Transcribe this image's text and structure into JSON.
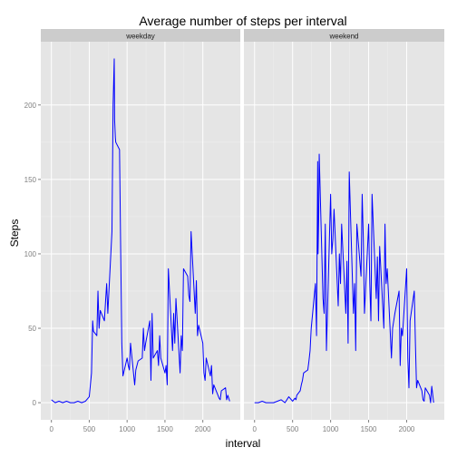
{
  "colors": {
    "panel_bg": "#e5e5e5",
    "strip_bg": "#cccccc",
    "grid_major": "#ffffff",
    "grid_minor": "#f0f0f0",
    "line": "#0000ff",
    "tick": "#7f7f7f"
  },
  "chart_data": {
    "type": "line",
    "title": "Average number of steps per interval",
    "xlabel": "interval",
    "ylabel": "Steps",
    "xlim": [
      -140,
      2495
    ],
    "ylim": [
      -11.5,
      242.5
    ],
    "x_ticks": [
      0,
      500,
      1000,
      1500,
      2000
    ],
    "x_tick_labels": [
      "0",
      "500",
      "1000",
      "1500",
      "2000"
    ],
    "y_ticks": [
      0,
      50,
      100,
      150,
      200
    ],
    "y_tick_labels": [
      "0",
      "50",
      "100",
      "150",
      "200"
    ],
    "grid": true,
    "legend": "none",
    "facets": [
      {
        "name": "weekday",
        "x": [
          0,
          50,
          100,
          150,
          200,
          250,
          300,
          350,
          400,
          450,
          500,
          530,
          545,
          555,
          600,
          615,
          630,
          645,
          700,
          715,
          730,
          745,
          800,
          815,
          830,
          835,
          845,
          850,
          900,
          915,
          930,
          945,
          1000,
          1015,
          1030,
          1045,
          1100,
          1115,
          1130,
          1145,
          1200,
          1215,
          1230,
          1245,
          1300,
          1315,
          1330,
          1345,
          1400,
          1415,
          1430,
          1445,
          1500,
          1515,
          1530,
          1545,
          1600,
          1615,
          1630,
          1645,
          1700,
          1715,
          1730,
          1745,
          1800,
          1815,
          1830,
          1845,
          1900,
          1915,
          1930,
          1945,
          2000,
          2015,
          2030,
          2045,
          2100,
          2115,
          2130,
          2145,
          2200,
          2215,
          2230,
          2245,
          2300,
          2315,
          2330,
          2355
        ],
        "y": [
          2,
          0,
          1,
          0,
          1,
          0,
          0,
          1,
          0,
          1,
          4,
          20,
          55,
          48,
          45,
          75,
          50,
          62,
          55,
          68,
          80,
          60,
          115,
          200,
          231,
          190,
          178,
          175,
          170,
          103,
          40,
          18,
          30,
          25,
          22,
          40,
          12,
          22,
          25,
          28,
          30,
          50,
          35,
          40,
          55,
          15,
          60,
          30,
          35,
          25,
          45,
          30,
          20,
          25,
          12,
          90,
          35,
          60,
          40,
          70,
          20,
          45,
          35,
          90,
          85,
          72,
          68,
          115,
          60,
          82,
          45,
          52,
          40,
          20,
          15,
          30,
          18,
          25,
          6,
          12,
          5,
          3,
          2,
          8,
          10,
          2,
          5,
          1
        ]
      },
      {
        "name": "weekend",
        "x": [
          0,
          50,
          100,
          150,
          200,
          250,
          300,
          350,
          400,
          450,
          500,
          530,
          545,
          555,
          600,
          615,
          630,
          645,
          700,
          715,
          730,
          745,
          800,
          815,
          830,
          835,
          845,
          850,
          900,
          915,
          930,
          945,
          1000,
          1015,
          1030,
          1045,
          1100,
          1115,
          1130,
          1145,
          1200,
          1215,
          1230,
          1245,
          1300,
          1315,
          1330,
          1345,
          1400,
          1415,
          1430,
          1445,
          1500,
          1515,
          1530,
          1545,
          1600,
          1615,
          1630,
          1645,
          1700,
          1715,
          1730,
          1745,
          1800,
          1815,
          1830,
          1845,
          1900,
          1915,
          1930,
          1945,
          2000,
          2015,
          2030,
          2045,
          2100,
          2115,
          2130,
          2145,
          2200,
          2215,
          2230,
          2245,
          2300,
          2315,
          2330,
          2355
        ],
        "y": [
          0,
          0,
          1,
          0,
          0,
          0,
          1,
          2,
          0,
          4,
          1,
          3,
          2,
          5,
          8,
          12,
          15,
          20,
          22,
          28,
          35,
          50,
          80,
          45,
          162,
          100,
          130,
          167,
          70,
          60,
          120,
          35,
          140,
          100,
          110,
          130,
          65,
          100,
          80,
          120,
          60,
          95,
          40,
          155,
          60,
          80,
          35,
          120,
          85,
          140,
          110,
          60,
          120,
          80,
          55,
          140,
          70,
          98,
          55,
          105,
          50,
          120,
          80,
          90,
          30,
          50,
          55,
          60,
          75,
          25,
          50,
          45,
          90,
          30,
          10,
          55,
          75,
          40,
          10,
          15,
          8,
          2,
          1,
          10,
          5,
          0,
          11,
          0
        ]
      }
    ]
  }
}
